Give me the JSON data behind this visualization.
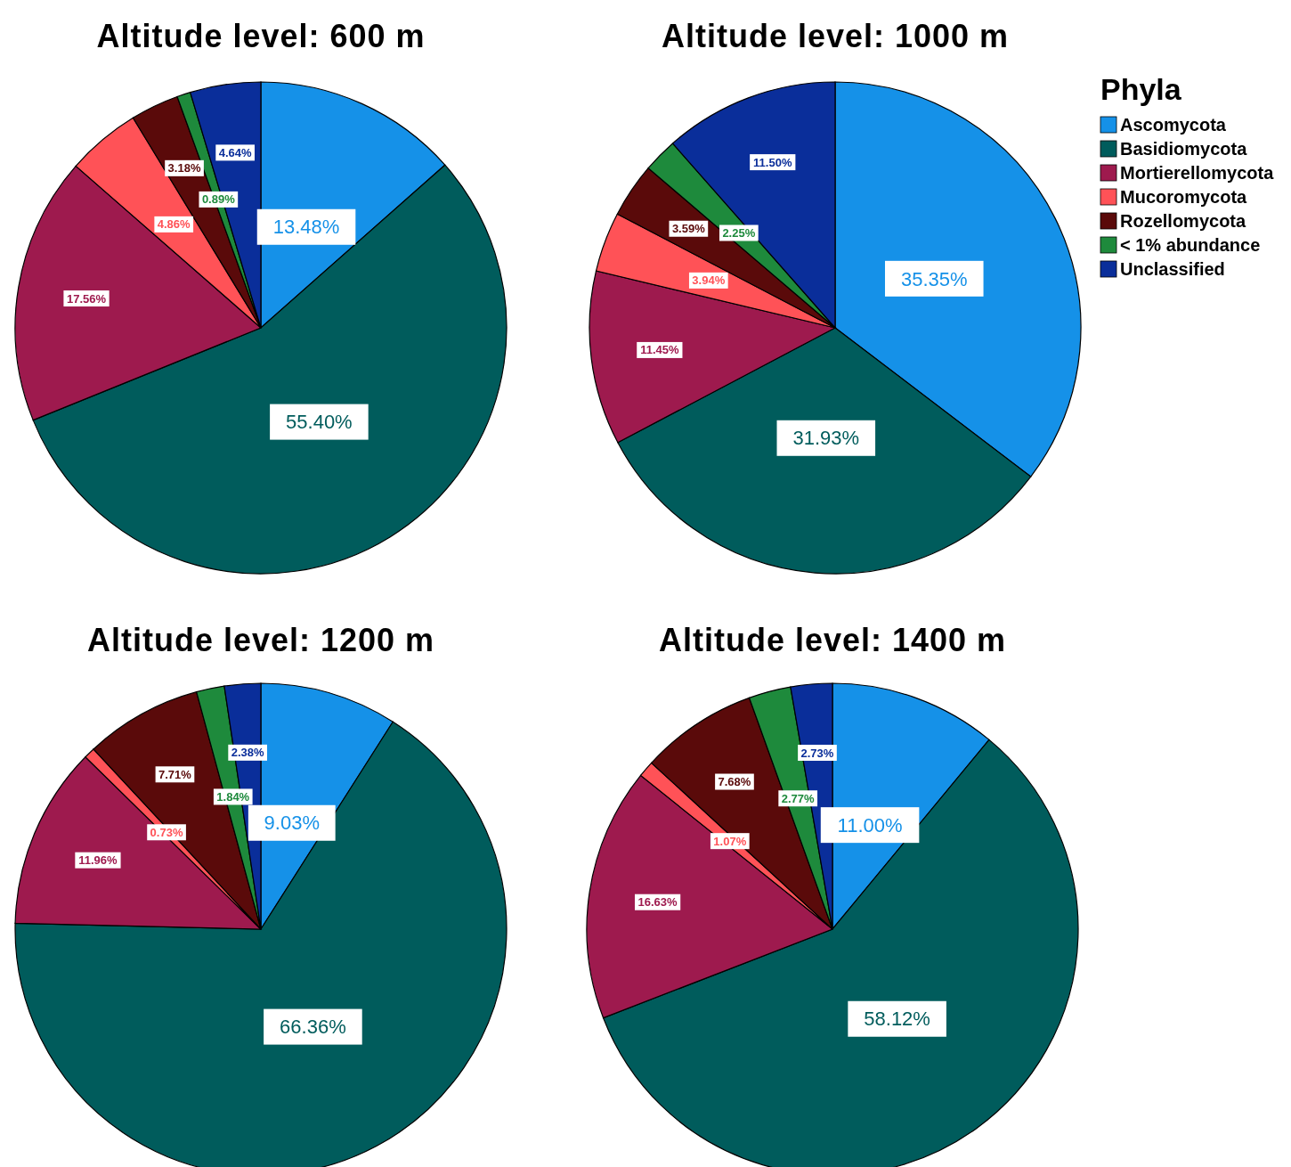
{
  "chart_data": [
    {
      "type": "pie",
      "title": "Altitude level: 600 m",
      "categories": [
        null,
        null,
        null,
        null,
        null,
        null,
        null
      ],
      "values": [
        13.48,
        55.4,
        17.56,
        4.86,
        3.18,
        0.89,
        4.64
      ],
      "value_labels": [
        "13.48%",
        "55.40%",
        "17.56%",
        "4.86%",
        "3.18%",
        "0.89%",
        "4.64%"
      ],
      "colors": [
        "#1591e8",
        "#005c5c",
        "#9e1a4e",
        "#ff5257",
        "#5a0a0a",
        "#1e8a3c",
        "#0a2e9a"
      ],
      "legend": false
    },
    {
      "type": "pie",
      "title": "Altitude level: 1000 m",
      "categories": [
        "Ascomycota",
        "Basidiomycota",
        "Mortierellomycota",
        "Mucoromycota",
        "Rozellomycota",
        "< 1% abundance",
        "Unclassified"
      ],
      "values": [
        35.35,
        31.93,
        11.45,
        3.94,
        3.59,
        2.25,
        11.5
      ],
      "value_labels": [
        "35.35%",
        "31.93%",
        "11.45%",
        "3.94%",
        "3.59%",
        "2.25%",
        "11.50%"
      ],
      "colors": [
        "#1591e8",
        "#005c5c",
        "#9e1a4e",
        "#ff5257",
        "#5a0a0a",
        "#1e8a3c",
        "#0a2e9a"
      ],
      "legend": "right",
      "legend_title": "Phyla"
    },
    {
      "type": "pie",
      "title": "Altitude level: 1200 m",
      "categories": [
        null,
        null,
        null,
        null,
        null,
        null,
        null
      ],
      "values": [
        9.03,
        66.36,
        11.96,
        0.73,
        7.71,
        1.84,
        2.38
      ],
      "value_labels": [
        "9.03%",
        "66.36%",
        "11.96%",
        "0.73%",
        "7.71%",
        "1.84%",
        "2.38%"
      ],
      "colors": [
        "#1591e8",
        "#005c5c",
        "#9e1a4e",
        "#ff5257",
        "#5a0a0a",
        "#1e8a3c",
        "#0a2e9a"
      ],
      "legend": false
    },
    {
      "type": "pie",
      "title": "Altitude level: 1400 m",
      "categories": [
        null,
        null,
        null,
        null,
        null,
        null,
        null
      ],
      "values": [
        11.0,
        58.12,
        16.63,
        1.07,
        7.68,
        2.77,
        2.73
      ],
      "value_labels": [
        "11.00%",
        "58.12%",
        "16.63%",
        "1.07%",
        "7.68%",
        "2.77%",
        "2.73%"
      ],
      "colors": [
        "#1591e8",
        "#005c5c",
        "#9e1a4e",
        "#ff5257",
        "#5a0a0a",
        "#1e8a3c",
        "#0a2e9a"
      ],
      "legend": false
    }
  ]
}
